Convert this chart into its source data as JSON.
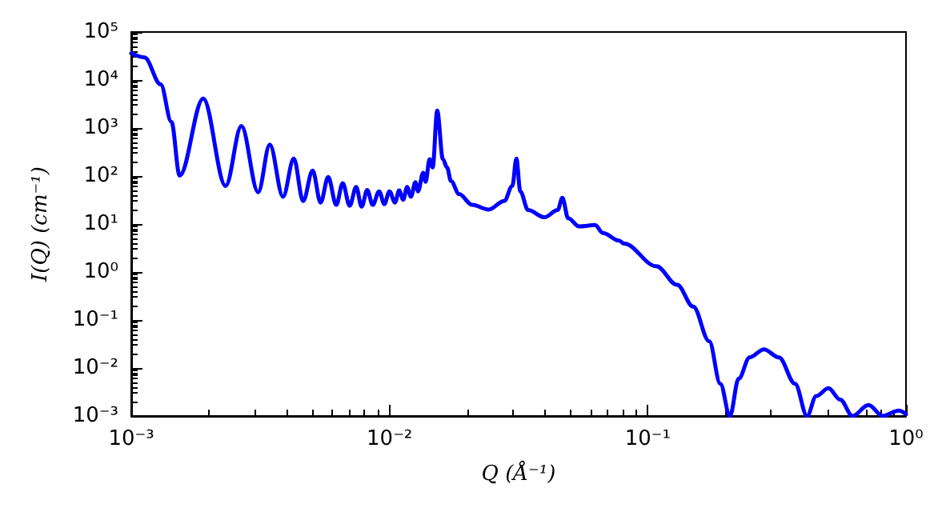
{
  "chart_data": {
    "type": "line",
    "xlabel": "Q (Å⁻¹)",
    "ylabel": "I(Q) (cm⁻¹)",
    "log": "xy",
    "grid": false,
    "marker": "none",
    "line_style": "solid",
    "xlim": [
      0.001,
      1
    ],
    "ylim": [
      0.001,
      100000
    ],
    "xticks": [
      {
        "value": 0.001,
        "label": "10⁻³"
      },
      {
        "value": 0.01,
        "label": "10⁻²"
      },
      {
        "value": 0.1,
        "label": "10⁻¹"
      },
      {
        "value": 1,
        "label": "10⁰"
      }
    ],
    "yticks": [
      {
        "value": 0.001,
        "label": "10⁻³"
      },
      {
        "value": 0.01,
        "label": "10⁻²"
      },
      {
        "value": 0.1,
        "label": "10⁻¹"
      },
      {
        "value": 1,
        "label": "10⁰"
      },
      {
        "value": 10,
        "label": "10¹"
      },
      {
        "value": 100,
        "label": "10²"
      },
      {
        "value": 1000,
        "label": "10³"
      },
      {
        "value": 10000,
        "label": "10⁴"
      },
      {
        "value": 100000,
        "label": "10⁵"
      }
    ],
    "series": [
      {
        "color": "#0000ff",
        "x": [
          0.001,
          0.001125,
          0.0013,
          0.00143,
          0.00154,
          0.0019,
          0.00232,
          0.00267,
          0.0031,
          0.00344,
          0.00387,
          0.00426,
          0.00463,
          0.00504,
          0.00541,
          0.00579,
          0.00622,
          0.00659,
          0.00701,
          0.00743,
          0.0078,
          0.0082,
          0.00861,
          0.00912,
          0.00955,
          0.01,
          0.0105,
          0.0109,
          0.0113,
          0.0117,
          0.0121,
          0.0126,
          0.0129,
          0.0135,
          0.0138,
          0.0143,
          0.0147,
          0.0153,
          0.0161,
          0.0167,
          0.0173,
          0.0186,
          0.0209,
          0.0242,
          0.0278,
          0.0299,
          0.031,
          0.0321,
          0.0344,
          0.0398,
          0.0448,
          0.0467,
          0.0492,
          0.0542,
          0.0625,
          0.0671,
          0.0774,
          0.081,
          0.108,
          0.13,
          0.15,
          0.173,
          0.191,
          0.208,
          0.225,
          0.248,
          0.282,
          0.322,
          0.372,
          0.414,
          0.449,
          0.501,
          0.556,
          0.621,
          0.716,
          0.813,
          0.938,
          1.0
        ],
        "values": [
          36000,
          29500,
          8100,
          1350,
          102,
          4100,
          62,
          1100,
          46,
          450,
          37,
          230,
          30,
          130,
          28,
          95,
          25,
          71,
          24,
          59,
          23,
          51,
          25,
          48,
          26,
          48,
          28,
          50,
          32,
          59,
          37,
          74,
          48,
          117,
          76,
          224,
          151,
          2300,
          224,
          151,
          79,
          42,
          25,
          20,
          30,
          62,
          230,
          48,
          19.5,
          13.8,
          19.5,
          35,
          13.2,
          8.9,
          9.5,
          6.5,
          4.5,
          3.9,
          1.32,
          0.54,
          0.19,
          0.036,
          0.0047,
          0.001,
          0.006,
          0.0166,
          0.0245,
          0.0166,
          0.0047,
          0.001,
          0.0026,
          0.0038,
          0.0022,
          0.001,
          0.0017,
          0.001,
          0.0013,
          0.0011
        ]
      }
    ]
  }
}
